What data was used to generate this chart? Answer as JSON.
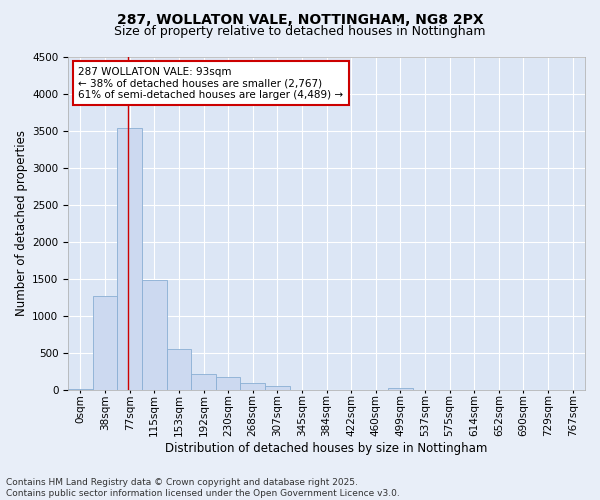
{
  "title_line1": "287, WOLLATON VALE, NOTTINGHAM, NG8 2PX",
  "title_line2": "Size of property relative to detached houses in Nottingham",
  "xlabel": "Distribution of detached houses by size in Nottingham",
  "ylabel": "Number of detached properties",
  "bar_color": "#ccd9f0",
  "bar_edge_color": "#8aafd4",
  "bg_color": "#dce6f5",
  "grid_color": "#ffffff",
  "fig_bg_color": "#e8eef8",
  "bin_labels": [
    "0sqm",
    "38sqm",
    "77sqm",
    "115sqm",
    "153sqm",
    "192sqm",
    "230sqm",
    "268sqm",
    "307sqm",
    "345sqm",
    "384sqm",
    "422sqm",
    "460sqm",
    "499sqm",
    "537sqm",
    "575sqm",
    "614sqm",
    "652sqm",
    "690sqm",
    "729sqm",
    "767sqm"
  ],
  "bar_values": [
    20,
    1270,
    3540,
    1490,
    560,
    220,
    180,
    100,
    60,
    5,
    0,
    0,
    0,
    30,
    0,
    0,
    0,
    0,
    0,
    0,
    0
  ],
  "ylim": [
    0,
    4500
  ],
  "yticks": [
    0,
    500,
    1000,
    1500,
    2000,
    2500,
    3000,
    3500,
    4000,
    4500
  ],
  "vline_x_bin": 2,
  "vline_x_offset": 0.42,
  "annotation_text": "287 WOLLATON VALE: 93sqm\n← 38% of detached houses are smaller (2,767)\n61% of semi-detached houses are larger (4,489) →",
  "annotation_box_color": "#ffffff",
  "annotation_border_color": "#cc0000",
  "vline_color": "#cc0000",
  "footer_line1": "Contains HM Land Registry data © Crown copyright and database right 2025.",
  "footer_line2": "Contains public sector information licensed under the Open Government Licence v3.0.",
  "title_fontsize": 10,
  "subtitle_fontsize": 9,
  "axis_label_fontsize": 8.5,
  "tick_fontsize": 7.5,
  "annotation_fontsize": 7.5,
  "footer_fontsize": 6.5
}
